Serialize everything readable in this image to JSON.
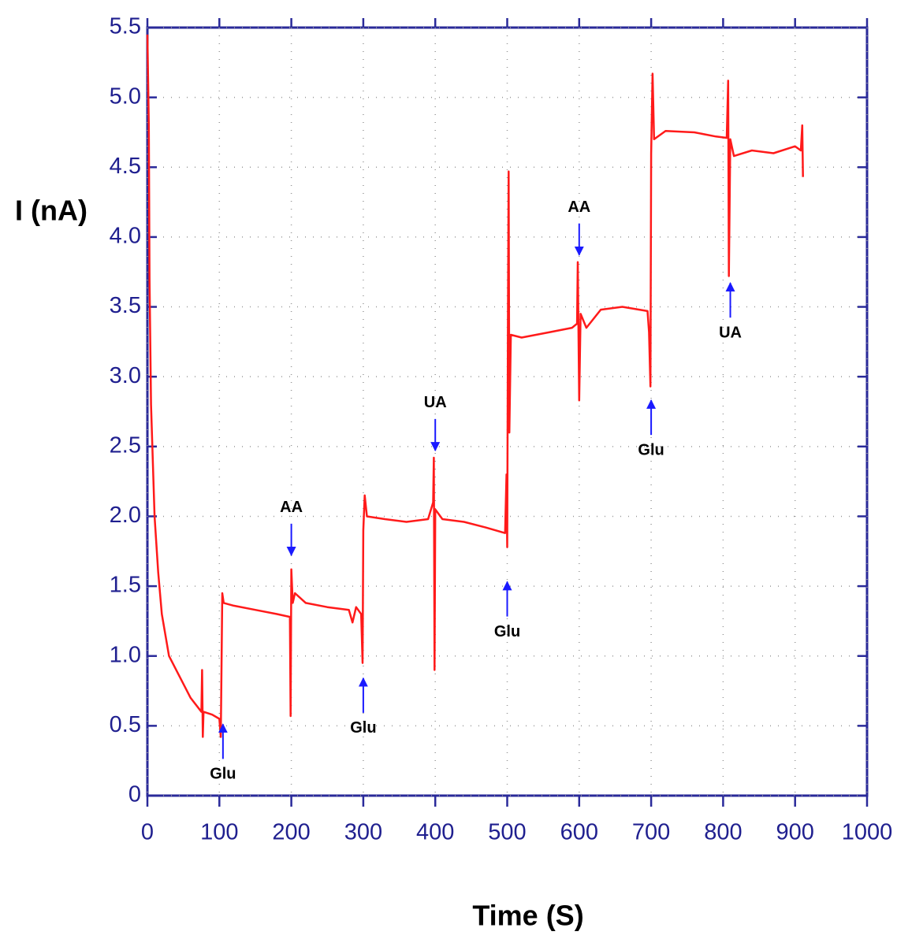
{
  "chart_data": {
    "type": "line",
    "xlabel": "Time (S)",
    "ylabel": "I (nA)",
    "xlim": [
      0,
      1000
    ],
    "ylim": [
      0,
      5.5
    ],
    "xticks": [
      0,
      100,
      200,
      300,
      400,
      500,
      600,
      700,
      800,
      900,
      1000
    ],
    "yticks": [
      0,
      0.5,
      {
        "value": 1,
        "label": "1.0"
      },
      1.5,
      {
        "value": 2,
        "label": "2.0"
      },
      2.5,
      {
        "value": 3,
        "label": "3.0"
      },
      3.5,
      {
        "value": 4,
        "label": "4.0"
      },
      4.5,
      {
        "value": 5,
        "label": "5.0"
      },
      5.5
    ],
    "grid": true,
    "series": [
      {
        "color": "#ff1a1a",
        "x": [
          0,
          2,
          3,
          5,
          10,
          15,
          20,
          30,
          45,
          60,
          75,
          76,
          77,
          78,
          90,
          100,
          102,
          104,
          106,
          120,
          150,
          180,
          198,
          199,
          200,
          202,
          205,
          220,
          250,
          280,
          285,
          290,
          297,
          299,
          300,
          302,
          305,
          330,
          360,
          390,
          397,
          398,
          399,
          400,
          410,
          440,
          470,
          497,
          499,
          500,
          501,
          502,
          503,
          505,
          520,
          560,
          590,
          597,
          598,
          600,
          602,
          610,
          630,
          660,
          695,
          697,
          699,
          700,
          702,
          704,
          720,
          760,
          790,
          805,
          807,
          808,
          810,
          815,
          840,
          870,
          900,
          908,
          910,
          911
        ],
        "values": [
          5.45,
          4.8,
          3.7,
          2.8,
          2.0,
          1.6,
          1.3,
          1.0,
          0.85,
          0.7,
          0.6,
          0.9,
          0.42,
          0.6,
          0.58,
          0.55,
          0.42,
          1.45,
          1.38,
          1.36,
          1.33,
          1.3,
          1.28,
          0.57,
          1.62,
          1.38,
          1.45,
          1.38,
          1.35,
          1.33,
          1.24,
          1.35,
          1.3,
          0.95,
          1.9,
          2.15,
          2.0,
          1.98,
          1.96,
          1.98,
          2.1,
          2.42,
          0.9,
          2.05,
          1.98,
          1.96,
          1.92,
          1.88,
          2.3,
          1.78,
          3.4,
          4.47,
          2.6,
          3.3,
          3.28,
          3.32,
          3.35,
          3.38,
          3.82,
          2.83,
          3.45,
          3.35,
          3.48,
          3.5,
          3.47,
          3.32,
          2.93,
          4.6,
          5.17,
          4.7,
          4.76,
          4.75,
          4.72,
          4.71,
          5.12,
          3.72,
          4.7,
          4.58,
          4.62,
          4.6,
          4.65,
          4.62,
          4.8,
          4.43
        ]
      }
    ],
    "annotations": [
      {
        "text": "Glu",
        "x": 105,
        "y": 0.15,
        "arrow": "up"
      },
      {
        "text": "AA",
        "x": 200,
        "y": 2.06,
        "arrow": "down"
      },
      {
        "text": "Glu",
        "x": 300,
        "y": 0.48,
        "arrow": "up"
      },
      {
        "text": "UA",
        "x": 400,
        "y": 2.81,
        "arrow": "down"
      },
      {
        "text": "Glu",
        "x": 500,
        "y": 1.17,
        "arrow": "up"
      },
      {
        "text": "AA",
        "x": 600,
        "y": 4.21,
        "arrow": "down"
      },
      {
        "text": "Glu",
        "x": 700,
        "y": 2.47,
        "arrow": "up"
      },
      {
        "text": "UA",
        "x": 810,
        "y": 3.31,
        "arrow": "up"
      }
    ]
  }
}
